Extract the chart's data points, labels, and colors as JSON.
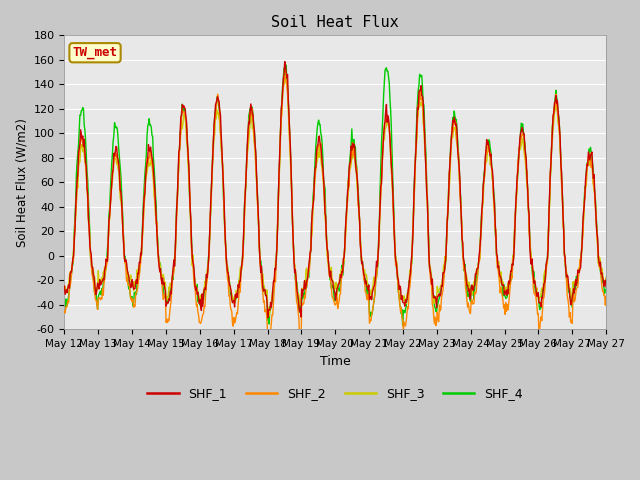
{
  "title": "Soil Heat Flux",
  "ylabel": "Soil Heat Flux (W/m2)",
  "xlabel": "Time",
  "ylim": [
    -60,
    180
  ],
  "yticks": [
    -60,
    -40,
    -20,
    0,
    20,
    40,
    60,
    80,
    100,
    120,
    140,
    160,
    180
  ],
  "colors": {
    "SHF_1": "#cc0000",
    "SHF_2": "#ff8800",
    "SHF_3": "#cccc00",
    "SHF_4": "#00cc00"
  },
  "annotation_text": "TW_met",
  "annotation_bg": "#ffffcc",
  "annotation_border": "#aa8800",
  "annotation_text_color": "#cc0000",
  "fig_bg": "#c8c8c8",
  "plot_bg": "#e8e8e8",
  "grid_color": "#ffffff",
  "xtick_labels": [
    "May 12",
    "May 13",
    "May 14",
    "May 15",
    "May 16",
    "May 17",
    "May 18",
    "May 19",
    "May 20",
    "May 21",
    "May 22",
    "May 23",
    "May 24",
    "May 25",
    "May 26",
    "May 27"
  ],
  "linewidth": 1.0,
  "n_days": 16,
  "pts_per_day": 48,
  "day_amps_1": [
    100,
    85,
    88,
    125,
    130,
    120,
    155,
    95,
    90,
    118,
    138,
    113,
    93,
    103,
    130,
    85
  ],
  "day_amps_2": [
    95,
    82,
    85,
    120,
    125,
    115,
    150,
    90,
    87,
    115,
    133,
    110,
    90,
    100,
    125,
    82
  ],
  "day_amps_3": [
    90,
    78,
    80,
    115,
    120,
    110,
    145,
    85,
    82,
    110,
    128,
    105,
    85,
    95,
    120,
    78
  ],
  "day_amps_4": [
    120,
    105,
    108,
    122,
    125,
    120,
    155,
    108,
    95,
    155,
    148,
    115,
    95,
    105,
    130,
    87
  ],
  "night_min_1": -30,
  "night_min_2": -45,
  "night_min_3": -30,
  "night_min_4": -35
}
